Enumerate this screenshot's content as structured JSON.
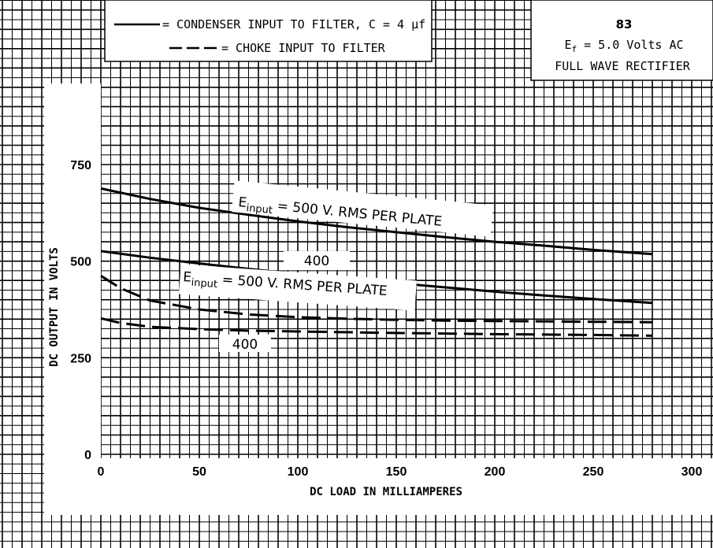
{
  "legend": {
    "solid_label": "= CONDENSER INPUT TO FILTER, C = 4 µf",
    "dashed_label": "= CHOKE INPUT TO FILTER"
  },
  "info": {
    "tube": "83",
    "filament": "E",
    "filament_sub": "f",
    "filament_rest": " = 5.0 Volts AC",
    "type": "FULL WAVE RECTIFIER"
  },
  "chart_data": {
    "type": "line",
    "xlabel": "DC LOAD IN MILLIAMPERES",
    "ylabel": "DC OUTPUT IN VOLTS",
    "xlim": [
      0,
      300
    ],
    "ylim": [
      0,
      750
    ],
    "xticks": [
      "0",
      "50",
      "100",
      "150",
      "200",
      "250",
      "300"
    ],
    "yticks": [
      "0",
      "250",
      "500",
      "750"
    ],
    "grid": true,
    "series": [
      {
        "style": "solid",
        "label_prefix": "E",
        "label_sub": "input",
        "label_rest": " = 500 V. RMS PER PLATE",
        "x": [
          0,
          25,
          50,
          75,
          100,
          125,
          150,
          175,
          200,
          225,
          250,
          280
        ],
        "y": [
          688,
          661,
          638,
          620,
          603,
          588,
          575,
          562,
          550,
          540,
          529,
          518
        ]
      },
      {
        "style": "solid",
        "label_prefix": "",
        "label_sub": "",
        "label_rest": "400",
        "x": [
          0,
          25,
          50,
          75,
          100,
          125,
          150,
          175,
          200,
          225,
          250,
          280
        ],
        "y": [
          526,
          509,
          494,
          480,
          466,
          454,
          443,
          432,
          421,
          411,
          402,
          392
        ]
      },
      {
        "style": "dashed",
        "label_prefix": "E",
        "label_sub": "input",
        "label_rest": " = 500 V. RMS PER PLATE",
        "x": [
          0,
          10,
          25,
          50,
          75,
          100,
          125,
          150,
          175,
          200,
          250,
          280
        ],
        "y": [
          462,
          430,
          398,
          375,
          362,
          355,
          351,
          348,
          346,
          345,
          343,
          342
        ]
      },
      {
        "style": "dashed",
        "label_prefix": "",
        "label_sub": "",
        "label_rest": "400",
        "x": [
          0,
          10,
          25,
          50,
          75,
          100,
          150,
          200,
          250,
          280
        ],
        "y": [
          352,
          340,
          330,
          324,
          320,
          318,
          314,
          311,
          309,
          307
        ]
      }
    ]
  }
}
